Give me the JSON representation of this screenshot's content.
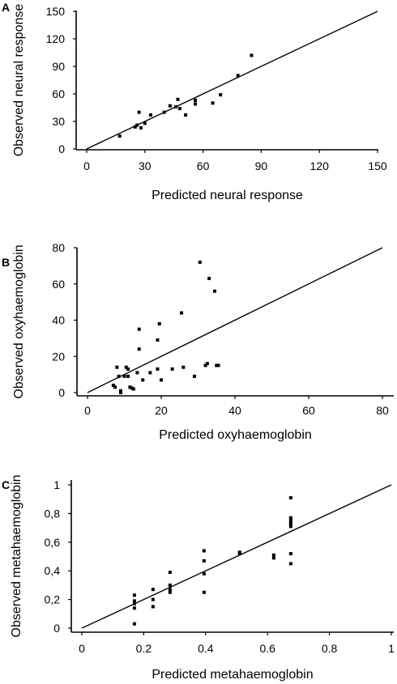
{
  "chart_data": [
    {
      "type": "scatter",
      "panel_label": "A",
      "xlabel": "Predicted neural response",
      "ylabel": "Observed neural response",
      "xlim": [
        0,
        150
      ],
      "ylim": [
        0,
        150
      ],
      "xticks": [
        0,
        30,
        60,
        90,
        120,
        150
      ],
      "yticks": [
        0,
        30,
        60,
        90,
        120,
        150
      ],
      "xtick_labels": [
        "0",
        "30",
        "60",
        "90",
        "120",
        "150"
      ],
      "ytick_labels": [
        "0",
        "30",
        "60",
        "90",
        "120",
        "150"
      ],
      "grid": false,
      "reference_line": {
        "from": [
          0,
          0
        ],
        "to": [
          150,
          150
        ]
      },
      "points": [
        [
          17,
          14
        ],
        [
          25,
          24
        ],
        [
          26,
          26
        ],
        [
          27,
          40
        ],
        [
          28,
          23
        ],
        [
          30,
          28
        ],
        [
          33,
          37
        ],
        [
          40,
          40
        ],
        [
          43,
          47
        ],
        [
          46,
          46
        ],
        [
          47,
          54
        ],
        [
          48,
          44
        ],
        [
          51,
          37
        ],
        [
          56,
          49
        ],
        [
          56,
          53
        ],
        [
          65,
          50
        ],
        [
          69,
          59
        ],
        [
          78,
          80
        ],
        [
          85,
          102
        ]
      ]
    },
    {
      "type": "scatter",
      "panel_label": "B",
      "xlabel": "Predicted  oxyhaemoglobin",
      "ylabel": "Observed oxyhaemoglobin",
      "xlim": [
        0,
        80
      ],
      "ylim": [
        0,
        80
      ],
      "xticks": [
        0,
        20,
        40,
        60,
        80
      ],
      "yticks": [
        0,
        20,
        40,
        60,
        80
      ],
      "xtick_labels": [
        "0",
        "20",
        "40",
        "60",
        "80"
      ],
      "ytick_labels": [
        "0",
        "20",
        "40",
        "60",
        "80"
      ],
      "grid": false,
      "reference_line": {
        "from": [
          0,
          0
        ],
        "to": [
          80,
          80
        ]
      },
      "points": [
        [
          7,
          4
        ],
        [
          7.5,
          3
        ],
        [
          8,
          14
        ],
        [
          8.5,
          9
        ],
        [
          9,
          0
        ],
        [
          9,
          1
        ],
        [
          10,
          9
        ],
        [
          10.5,
          14
        ],
        [
          11,
          9
        ],
        [
          11,
          13
        ],
        [
          11.5,
          3
        ],
        [
          12,
          2.5
        ],
        [
          12.5,
          2
        ],
        [
          13.5,
          11
        ],
        [
          14,
          24
        ],
        [
          14,
          35
        ],
        [
          15,
          7
        ],
        [
          17,
          11
        ],
        [
          19,
          13
        ],
        [
          19,
          29
        ],
        [
          19.5,
          38
        ],
        [
          20,
          7
        ],
        [
          23,
          13
        ],
        [
          25.5,
          44
        ],
        [
          26,
          14
        ],
        [
          29,
          9
        ],
        [
          30.5,
          72
        ],
        [
          32,
          15
        ],
        [
          32.5,
          16
        ],
        [
          33,
          63
        ],
        [
          34.5,
          56
        ],
        [
          35,
          15
        ],
        [
          35.5,
          15
        ]
      ]
    },
    {
      "type": "scatter",
      "panel_label": "C",
      "xlabel": "Predicted metahaemoglobin",
      "ylabel": "Observed metahaemoglobin",
      "xlim": [
        0,
        1
      ],
      "ylim": [
        0,
        1
      ],
      "xticks": [
        0,
        0.2,
        0.4,
        0.6,
        0.8,
        1
      ],
      "yticks": [
        0,
        0.2,
        0.4,
        0.6,
        0.8,
        1
      ],
      "xtick_labels": [
        "0",
        "0.2",
        "0.4",
        "0.6",
        "0.8",
        "1"
      ],
      "ytick_labels": [
        "0",
        "0,2",
        "0,4",
        "0,6",
        "0,8",
        "1"
      ],
      "grid": false,
      "reference_line": {
        "from": [
          0,
          0
        ],
        "to": [
          1,
          1
        ]
      },
      "points": [
        [
          0.17,
          0.03
        ],
        [
          0.17,
          0.14
        ],
        [
          0.17,
          0.17
        ],
        [
          0.17,
          0.19
        ],
        [
          0.17,
          0.23
        ],
        [
          0.23,
          0.15
        ],
        [
          0.23,
          0.2
        ],
        [
          0.23,
          0.27
        ],
        [
          0.285,
          0.25
        ],
        [
          0.285,
          0.27
        ],
        [
          0.285,
          0.3
        ],
        [
          0.285,
          0.39
        ],
        [
          0.395,
          0.25
        ],
        [
          0.395,
          0.38
        ],
        [
          0.395,
          0.47
        ],
        [
          0.395,
          0.54
        ],
        [
          0.51,
          0.52
        ],
        [
          0.51,
          0.53
        ],
        [
          0.62,
          0.49
        ],
        [
          0.62,
          0.51
        ],
        [
          0.675,
          0.45
        ],
        [
          0.675,
          0.52
        ],
        [
          0.675,
          0.71
        ],
        [
          0.675,
          0.73
        ],
        [
          0.675,
          0.75
        ],
        [
          0.675,
          0.77
        ],
        [
          0.675,
          0.91
        ]
      ]
    }
  ]
}
